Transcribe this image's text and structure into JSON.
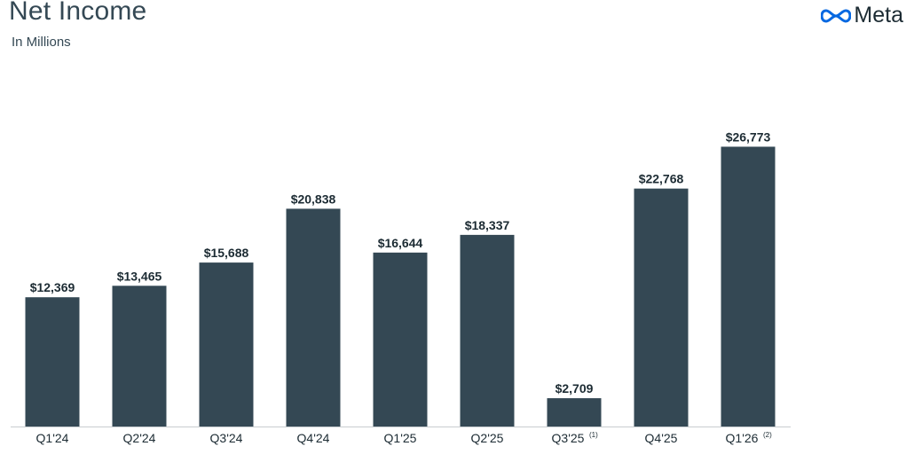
{
  "header": {
    "title": "Net Income",
    "subtitle": "In Millions",
    "brand": "Meta"
  },
  "colors": {
    "bar": "#344854",
    "logo": "#0668E1",
    "text": "#1c2b33"
  },
  "chart_data": {
    "type": "bar",
    "title": "Net Income",
    "subtitle": "In Millions",
    "xlabel": "",
    "ylabel": "",
    "grid": false,
    "legend": "none",
    "ylim": [
      0,
      28000
    ],
    "categories": [
      "Q1'24",
      "Q2'24",
      "Q3'24",
      "Q4'24",
      "Q1'25",
      "Q2'25",
      "Q3'25",
      "Q4'25",
      "Q1'26"
    ],
    "footnotes": [
      "",
      "",
      "",
      "",
      "",
      "",
      "(1)",
      "",
      "(2)"
    ],
    "values": [
      12369,
      13465,
      15688,
      20838,
      16644,
      18337,
      2709,
      22768,
      26773
    ],
    "value_labels": [
      "$12,369",
      "$13,465",
      "$15,688",
      "$20,838",
      "$16,644",
      "$18,337",
      "$2,709",
      "$22,768",
      "$26,773"
    ]
  }
}
